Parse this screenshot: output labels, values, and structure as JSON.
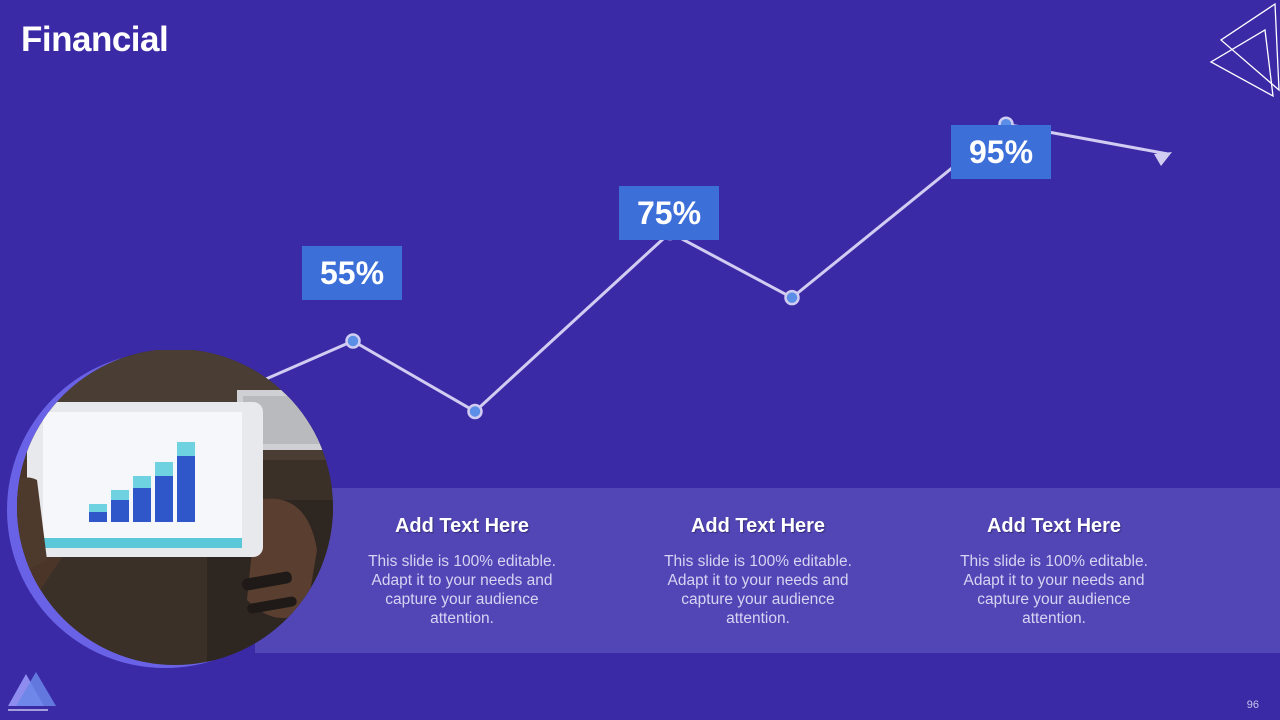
{
  "slide": {
    "title": "Financial",
    "page_number": "96"
  },
  "chart_data": {
    "type": "line",
    "x": [
      1,
      2,
      3,
      4,
      5,
      6
    ],
    "values": [
      55,
      42,
      75,
      63,
      95,
      null
    ],
    "labeled_points": [
      {
        "label": "55%"
      },
      {
        "label": "75%"
      },
      {
        "label": "95%"
      }
    ],
    "arrow_end": true
  },
  "info": [
    {
      "heading": "Add Text Here",
      "body": "This slide is 100% editable. Adapt it to your needs and capture your audience attention."
    },
    {
      "heading": "Add Text Here",
      "body": "This slide is 100% editable. Adapt it to your needs and capture your audience attention."
    },
    {
      "heading": "Add Text Here",
      "body": "This slide is 100% editable. Adapt it to your needs and capture your audience attention."
    }
  ],
  "colors": {
    "background": "#3a2aa6",
    "band": "#5246b7",
    "label_box": "#3d6fd9",
    "line": "#d0ccf2",
    "marker": "#5b8ee6"
  },
  "icons": {
    "corner": "outline-triangles-icon",
    "logo": "triangle-logo-icon"
  }
}
